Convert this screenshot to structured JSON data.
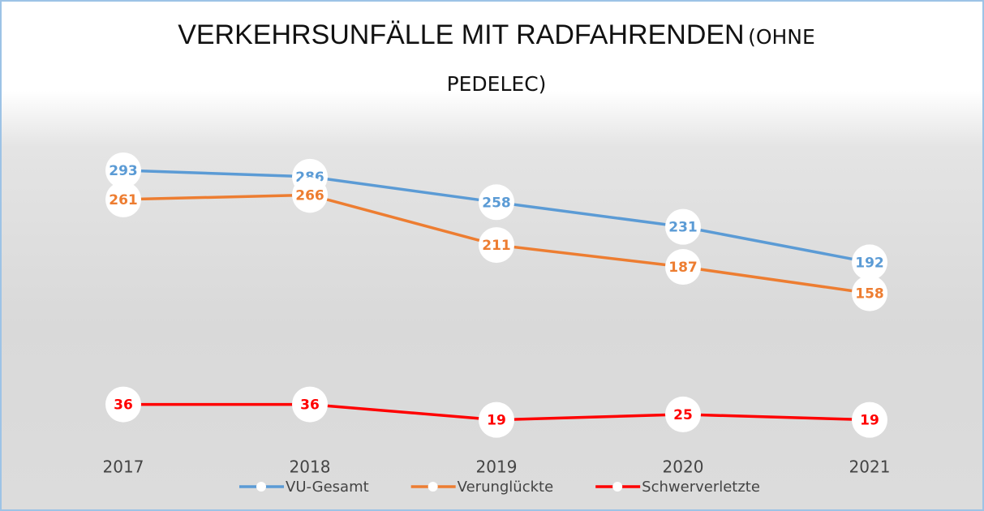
{
  "chart_data": {
    "type": "line",
    "title": {
      "main": "VERKEHRSUNFÄLLE MIT RADFAHRENDEN",
      "sub": "(OHNE PEDELEC)"
    },
    "categories": [
      "2017",
      "2018",
      "2019",
      "2020",
      "2021"
    ],
    "ylim": [
      0,
      350
    ],
    "series": [
      {
        "name": "VU-Gesamt",
        "color": "#5b9bd5",
        "values": [
          293,
          286,
          258,
          231,
          192
        ]
      },
      {
        "name": "Verunglückte",
        "color": "#ed7d31",
        "values": [
          261,
          266,
          211,
          187,
          158
        ]
      },
      {
        "name": "Schwerverletzte",
        "color": "#ff0000",
        "values": [
          36,
          36,
          19,
          25,
          19
        ]
      }
    ],
    "legend": "bottom"
  }
}
